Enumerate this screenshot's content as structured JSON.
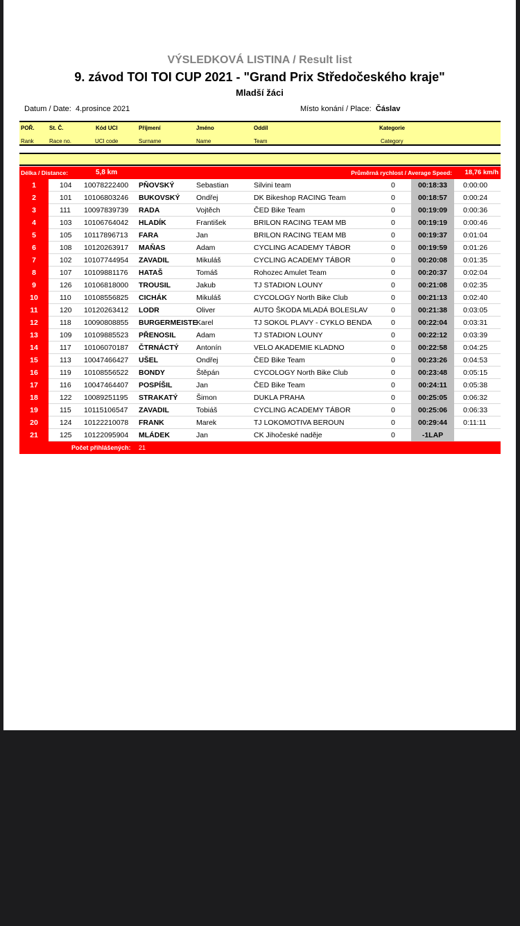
{
  "header": {
    "title": "VÝSLEDKOVÁ  LISTINA / Result list",
    "event": "9. závod TOI TOI CUP 2021 - \"Grand Prix Středočeského kraje\"",
    "category": "Mladší žáci",
    "date_label": "Datum / Date:",
    "date": "4.prosince 2021",
    "place_label": "Místo konání / Place:",
    "place": "Čáslav"
  },
  "columns": [
    {
      "cz": "POŘ.",
      "en": "Rank"
    },
    {
      "cz": "St. Č.",
      "en": "Race no."
    },
    {
      "cz": "Kód UCI",
      "en": "UCI code"
    },
    {
      "cz": "Příjmení",
      "en": "Surname"
    },
    {
      "cz": "Jméno",
      "en": "Name"
    },
    {
      "cz": "Oddíl",
      "en": "Team"
    },
    {
      "cz": "Kategorie",
      "en": "Category"
    }
  ],
  "distance": {
    "label": "Délka / Distance:",
    "value": "5,8 km",
    "speed_label": "Průměrná rychlost / Average Speed:",
    "speed": "18,76 km/h"
  },
  "results": [
    [
      "1",
      "104",
      "10078222400",
      "PŇOVSKÝ",
      "Sebastian",
      "Silvini team",
      "0",
      "00:18:33",
      "0:00:00"
    ],
    [
      "2",
      "101",
      "10106803246",
      "BUKOVSKÝ",
      "Ondřej",
      "DK Bikeshop RACING Team",
      "0",
      "00:18:57",
      "0:00:24"
    ],
    [
      "3",
      "111",
      "10097839739",
      "RADA",
      "Vojtěch",
      "ČED Bike Team",
      "0",
      "00:19:09",
      "0:00:36"
    ],
    [
      "4",
      "103",
      "10106764042",
      "HLADÍK",
      "František",
      "BRILON RACING TEAM MB",
      "0",
      "00:19:19",
      "0:00:46"
    ],
    [
      "5",
      "105",
      "10117896713",
      "FARA",
      "Jan",
      "BRILON RACING TEAM MB",
      "0",
      "00:19:37",
      "0:01:04"
    ],
    [
      "6",
      "108",
      "10120263917",
      "MAŇAS",
      "Adam",
      "CYCLING ACADEMY TÁBOR",
      "0",
      "00:19:59",
      "0:01:26"
    ],
    [
      "7",
      "102",
      "10107744954",
      "ZAVADIL",
      "Mikuláš",
      "CYCLING ACADEMY TÁBOR",
      "0",
      "00:20:08",
      "0:01:35"
    ],
    [
      "8",
      "107",
      "10109881176",
      "HATAŠ",
      "Tomáš",
      "Rohozec Amulet Team",
      "0",
      "00:20:37",
      "0:02:04"
    ],
    [
      "9",
      "126",
      "10106818000",
      "TROUSIL",
      "Jakub",
      "TJ STADION LOUNY",
      "0",
      "00:21:08",
      "0:02:35"
    ],
    [
      "10",
      "110",
      "10108556825",
      "CICHÁK",
      "Mikuláš",
      "CYCOLOGY North Bike Club",
      "0",
      "00:21:13",
      "0:02:40"
    ],
    [
      "11",
      "120",
      "10120263412",
      "LODR",
      "Oliver",
      "AUTO ŠKODA MLADÁ BOLESLAV",
      "0",
      "00:21:38",
      "0:03:05"
    ],
    [
      "12",
      "118",
      "10090808855",
      "BURGERMEISTE",
      "Karel",
      "TJ SOKOL PLAVY - CYKLO BENDA",
      "0",
      "00:22:04",
      "0:03:31"
    ],
    [
      "13",
      "109",
      "10109885523",
      "PŘENOSIL",
      "Adam",
      "TJ STADION LOUNY",
      "0",
      "00:22:12",
      "0:03:39"
    ],
    [
      "14",
      "117",
      "10106070187",
      "ČTRNÁCTÝ",
      "Antonín",
      "VELO AKADEMIE KLADNO",
      "0",
      "00:22:58",
      "0:04:25"
    ],
    [
      "15",
      "113",
      "10047466427",
      "UŠEL",
      "Ondřej",
      "ČED Bike Team",
      "0",
      "00:23:26",
      "0:04:53"
    ],
    [
      "16",
      "119",
      "10108556522",
      "BONDY",
      "Štěpán",
      "CYCOLOGY North Bike Club",
      "0",
      "00:23:48",
      "0:05:15"
    ],
    [
      "17",
      "116",
      "10047464407",
      "POSPÍŠIL",
      "Jan",
      "ČED Bike Team",
      "0",
      "00:24:11",
      "0:05:38"
    ],
    [
      "18",
      "122",
      "10089251195",
      "STRAKATÝ",
      "Šimon",
      "DUKLA  PRAHA",
      "0",
      "00:25:05",
      "0:06:32"
    ],
    [
      "19",
      "115",
      "10115106547",
      "ZAVADIL",
      "Tobiáš",
      "CYCLING ACADEMY TÁBOR",
      "0",
      "00:25:06",
      "0:06:33"
    ],
    [
      "20",
      "124",
      "10122210078",
      "FRANK",
      "Marek",
      "TJ LOKOMOTIVA BEROUN",
      "0",
      "00:29:44",
      "0:11:11"
    ],
    [
      "21",
      "125",
      "10122095904",
      "MLÁDEK",
      "Jan",
      "CK Jihočeské naděje",
      "0",
      "-1LAP",
      ""
    ]
  ],
  "footer": {
    "label": "Počet přihlášených:",
    "count": "21"
  },
  "colors": {
    "accent_red": "#ff0000",
    "header_yellow": "#ffff99",
    "time_gray": "#c0c0c0"
  }
}
